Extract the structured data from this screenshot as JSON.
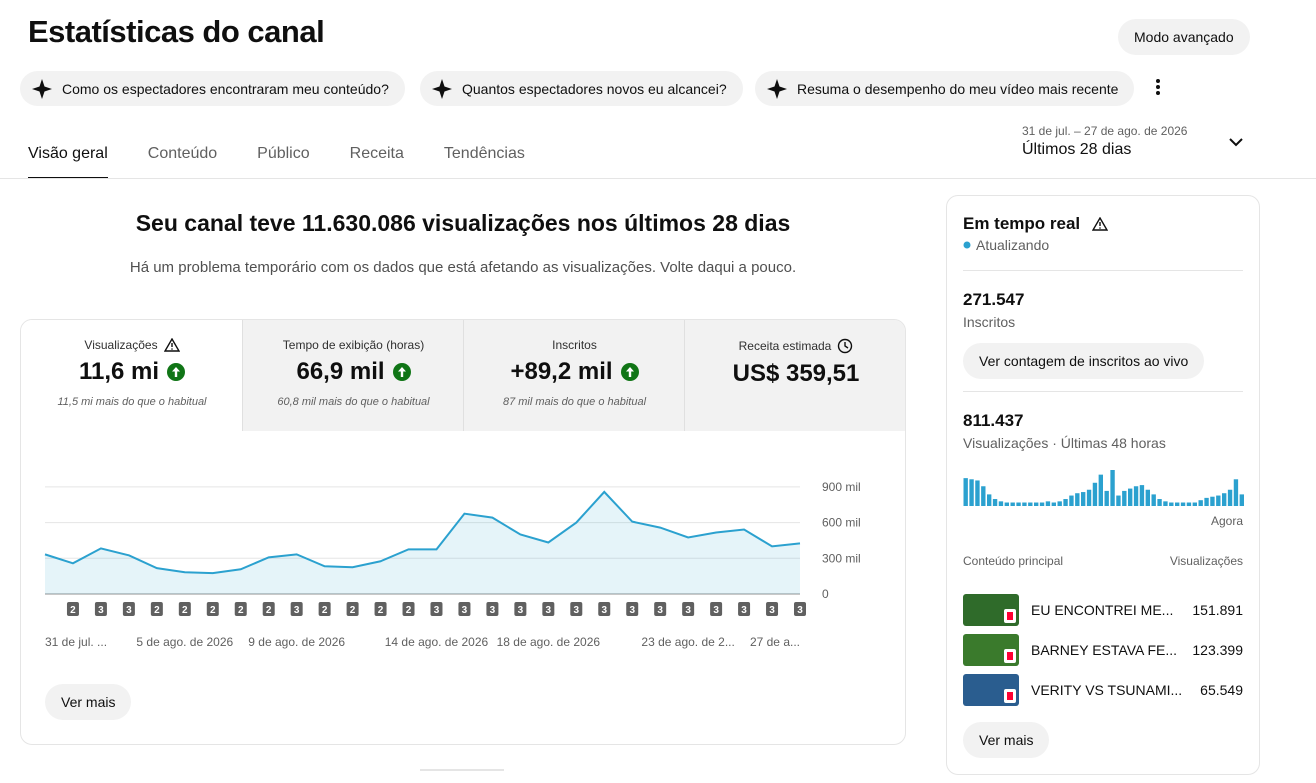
{
  "header": {
    "title": "Estatísticas do canal",
    "advanced_button": "Modo avançado"
  },
  "suggestions": [
    "Como os espectadores encontraram meu conteúdo?",
    "Quantos espectadores novos eu alcancei?",
    "Resuma o desempenho do meu vídeo mais recente"
  ],
  "tabs": [
    "Visão geral",
    "Conteúdo",
    "Público",
    "Receita",
    "Tendências"
  ],
  "date_range": {
    "dates": "31 de jul. – 27 de ago. de 2026",
    "label": "Últimos 28 dias"
  },
  "summary": {
    "headline": "Seu canal teve 11.630.086 visualizações nos últimos 28 dias",
    "notice": "Há um problema temporário com os dados que está afetando as visualizações. Volte daqui a pouco."
  },
  "metrics": [
    {
      "label": "Visualizações",
      "value": "11,6 mi",
      "comparison": "11,5 mi mais do que o habitual"
    },
    {
      "label": "Tempo de exibição (horas)",
      "value": "66,9 mil",
      "comparison": "60,8 mil mais do que o habitual"
    },
    {
      "label": "Inscritos",
      "value": "+89,2 mil",
      "comparison": "87 mil mais do que o habitual"
    },
    {
      "label": "Receita estimada",
      "value": "US$ 359,51"
    }
  ],
  "chart_data": {
    "type": "line",
    "color": "#2ba1cf",
    "categories": [
      "31 de jul. ...",
      null,
      null,
      null,
      null,
      "5 de ago. de 2026",
      null,
      null,
      null,
      "9 de ago. de 2026",
      null,
      null,
      null,
      null,
      "14 de ago. de 2026",
      null,
      null,
      null,
      "18 de ago. de 2026",
      null,
      null,
      null,
      null,
      "23 de ago. de 2...",
      null,
      null,
      null,
      "27 de a..."
    ],
    "values": [
      333,
      258,
      383,
      325,
      217,
      183,
      175,
      208,
      308,
      333,
      233,
      225,
      275,
      375,
      375,
      675,
      642,
      500,
      433,
      600,
      858,
      608,
      558,
      475,
      517,
      542,
      400,
      425
    ],
    "video_counts": [
      null,
      2,
      3,
      3,
      2,
      2,
      2,
      2,
      2,
      3,
      2,
      2,
      2,
      2,
      3,
      3,
      3,
      3,
      3,
      3,
      3,
      3,
      3,
      3,
      3,
      3,
      3,
      3
    ],
    "ylim": [
      0,
      1000
    ],
    "yticks": [
      0,
      {
        "value": 300,
        "label": "300 mil"
      },
      {
        "value": 600,
        "label": "600 mil"
      },
      {
        "value": 900,
        "label": "900 mil"
      }
    ],
    "grid": true
  },
  "more_button": "Ver mais",
  "realtime": {
    "title": "Em tempo real",
    "status": "Atualizando",
    "subscribers": "271.547",
    "subscribers_label": "Inscritos",
    "live_button": "Ver contagem de inscritos ao vivo",
    "views": "811.437",
    "views_label": "Visualizações · Últimas 48 horas",
    "chart_data": {
      "type": "bar",
      "color": "#2ba1cf",
      "values": [
        24,
        23,
        22,
        17,
        10,
        6,
        4,
        3,
        3,
        3,
        3,
        3,
        3,
        3,
        4,
        3,
        4,
        6,
        9,
        11,
        12,
        14,
        20,
        27,
        13,
        31,
        9,
        13,
        15,
        17,
        18,
        14,
        10,
        6,
        4,
        3,
        3,
        3,
        3,
        3,
        5,
        7,
        8,
        9,
        11,
        14,
        23,
        10
      ],
      "ylim": [
        0,
        31
      ],
      "end_label": "Agora"
    },
    "top_header": "Conteúdo principal",
    "top_views_header": "Visualizações",
    "top": [
      {
        "title": "EU ENCONTREI ME...",
        "views": "151.891"
      },
      {
        "title": "BARNEY ESTAVA FE...",
        "views": "123.399"
      },
      {
        "title": "VERITY VS TSUNAMI...",
        "views": "65.549"
      }
    ],
    "more_button": "Ver mais"
  }
}
